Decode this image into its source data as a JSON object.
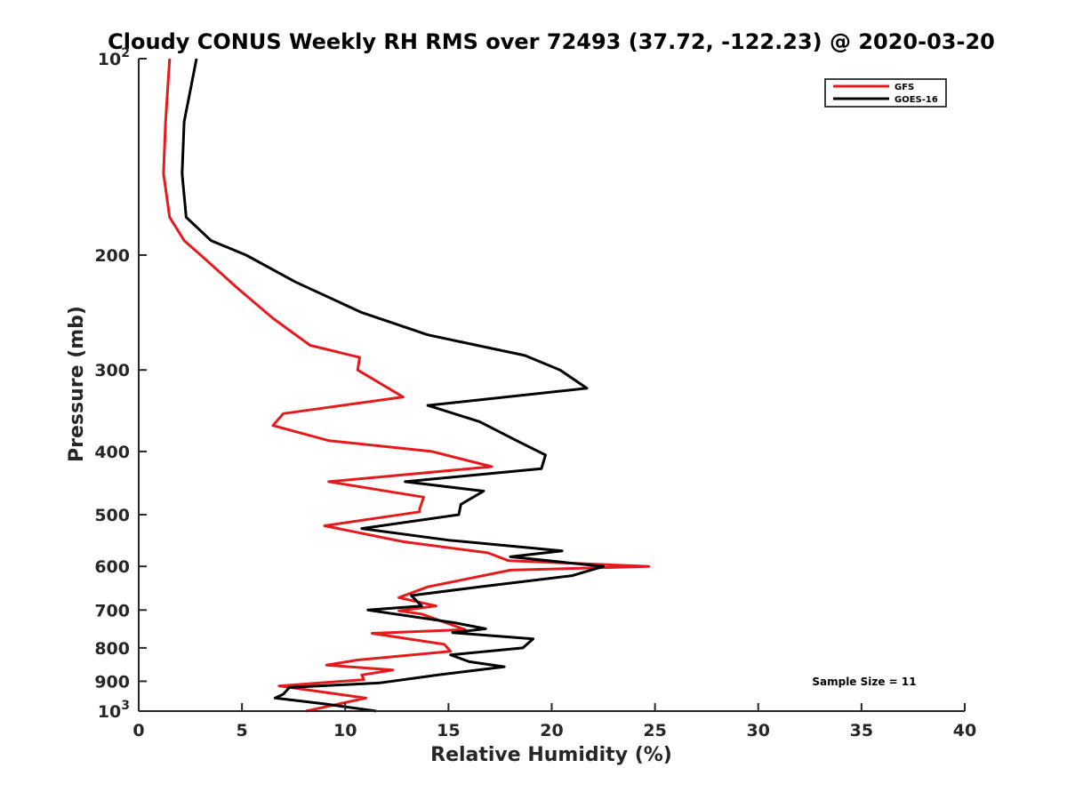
{
  "chart_data": {
    "type": "line",
    "title": "Cloudy CONUS Weekly RH RMS over 72493 (37.72, -122.23) @ 2020-03-20",
    "xlabel": "Relative Humidity (%)",
    "ylabel": "Pressure (mb)",
    "xlim": [
      0,
      40
    ],
    "ylim": [
      100,
      1000
    ],
    "y_scale": "log",
    "y_reversed": true,
    "grid": false,
    "legend_position": "top-right",
    "x_ticks": [
      "0",
      "5",
      "10",
      "15",
      "20",
      "25",
      "30",
      "35",
      "40"
    ],
    "y_ticks": [
      {
        "value": 100,
        "base": "10",
        "exp": "2"
      },
      {
        "value": 200,
        "label": "200"
      },
      {
        "value": 300,
        "label": "300"
      },
      {
        "value": 400,
        "label": "400"
      },
      {
        "value": 500,
        "label": "500"
      },
      {
        "value": 600,
        "label": "600"
      },
      {
        "value": 700,
        "label": "700"
      },
      {
        "value": 800,
        "label": "800"
      },
      {
        "value": 900,
        "label": "900"
      },
      {
        "value": 1000,
        "base": "10",
        "exp": "3"
      }
    ],
    "annotation": "Sample Size = 11",
    "series": [
      {
        "name": "GFS",
        "color": "#e41a1c",
        "points": [
          [
            1.5,
            100
          ],
          [
            1.3,
            125
          ],
          [
            1.2,
            150
          ],
          [
            1.5,
            175
          ],
          [
            2.2,
            190
          ],
          [
            3.0,
            200
          ],
          [
            4.8,
            225
          ],
          [
            6.5,
            250
          ],
          [
            8.3,
            275
          ],
          [
            10.7,
            287
          ],
          [
            10.6,
            300
          ],
          [
            12.8,
            330
          ],
          [
            7.0,
            350
          ],
          [
            6.5,
            365
          ],
          [
            9.2,
            385
          ],
          [
            14.2,
            400
          ],
          [
            17.1,
            422
          ],
          [
            9.2,
            445
          ],
          [
            13.8,
            470
          ],
          [
            13.6,
            490
          ],
          [
            13.6,
            495
          ],
          [
            9.0,
            520
          ],
          [
            12.8,
            550
          ],
          [
            16.9,
            572
          ],
          [
            17.9,
            588
          ],
          [
            24.7,
            600
          ],
          [
            18.0,
            608
          ],
          [
            14.0,
            645
          ],
          [
            12.6,
            670
          ],
          [
            14.4,
            690
          ],
          [
            12.6,
            702
          ],
          [
            13.7,
            710
          ],
          [
            15.8,
            750
          ],
          [
            11.3,
            760
          ],
          [
            14.8,
            790
          ],
          [
            15.1,
            810
          ],
          [
            10.6,
            835
          ],
          [
            9.1,
            850
          ],
          [
            12.3,
            865
          ],
          [
            10.8,
            880
          ],
          [
            10.9,
            895
          ],
          [
            6.8,
            915
          ],
          [
            11.0,
            955
          ],
          [
            8.1,
            1000
          ]
        ]
      },
      {
        "name": "GOES-16",
        "color": "#000000",
        "points": [
          [
            2.8,
            100
          ],
          [
            2.2,
            125
          ],
          [
            2.1,
            150
          ],
          [
            2.3,
            175
          ],
          [
            3.5,
            190
          ],
          [
            5.2,
            200
          ],
          [
            7.6,
            220
          ],
          [
            10.8,
            245
          ],
          [
            14.0,
            265
          ],
          [
            18.7,
            285
          ],
          [
            20.4,
            300
          ],
          [
            21.7,
            320
          ],
          [
            14.0,
            340
          ],
          [
            16.5,
            360
          ],
          [
            18.3,
            385
          ],
          [
            19.7,
            405
          ],
          [
            19.5,
            425
          ],
          [
            12.9,
            445
          ],
          [
            16.7,
            460
          ],
          [
            15.6,
            482
          ],
          [
            15.5,
            500
          ],
          [
            10.8,
            525
          ],
          [
            15.0,
            547
          ],
          [
            20.5,
            568
          ],
          [
            18.0,
            580
          ],
          [
            22.5,
            600
          ],
          [
            21.0,
            620
          ],
          [
            16.5,
            645
          ],
          [
            13.2,
            665
          ],
          [
            13.7,
            690
          ],
          [
            11.1,
            700
          ],
          [
            15.3,
            732
          ],
          [
            16.8,
            748
          ],
          [
            15.2,
            758
          ],
          [
            19.1,
            775
          ],
          [
            18.6,
            800
          ],
          [
            15.1,
            820
          ],
          [
            16.0,
            840
          ],
          [
            17.7,
            855
          ],
          [
            14.5,
            880
          ],
          [
            11.7,
            905
          ],
          [
            7.3,
            920
          ],
          [
            7.0,
            942
          ],
          [
            6.6,
            955
          ],
          [
            9.0,
            975
          ],
          [
            11.5,
            1000
          ]
        ]
      }
    ]
  }
}
